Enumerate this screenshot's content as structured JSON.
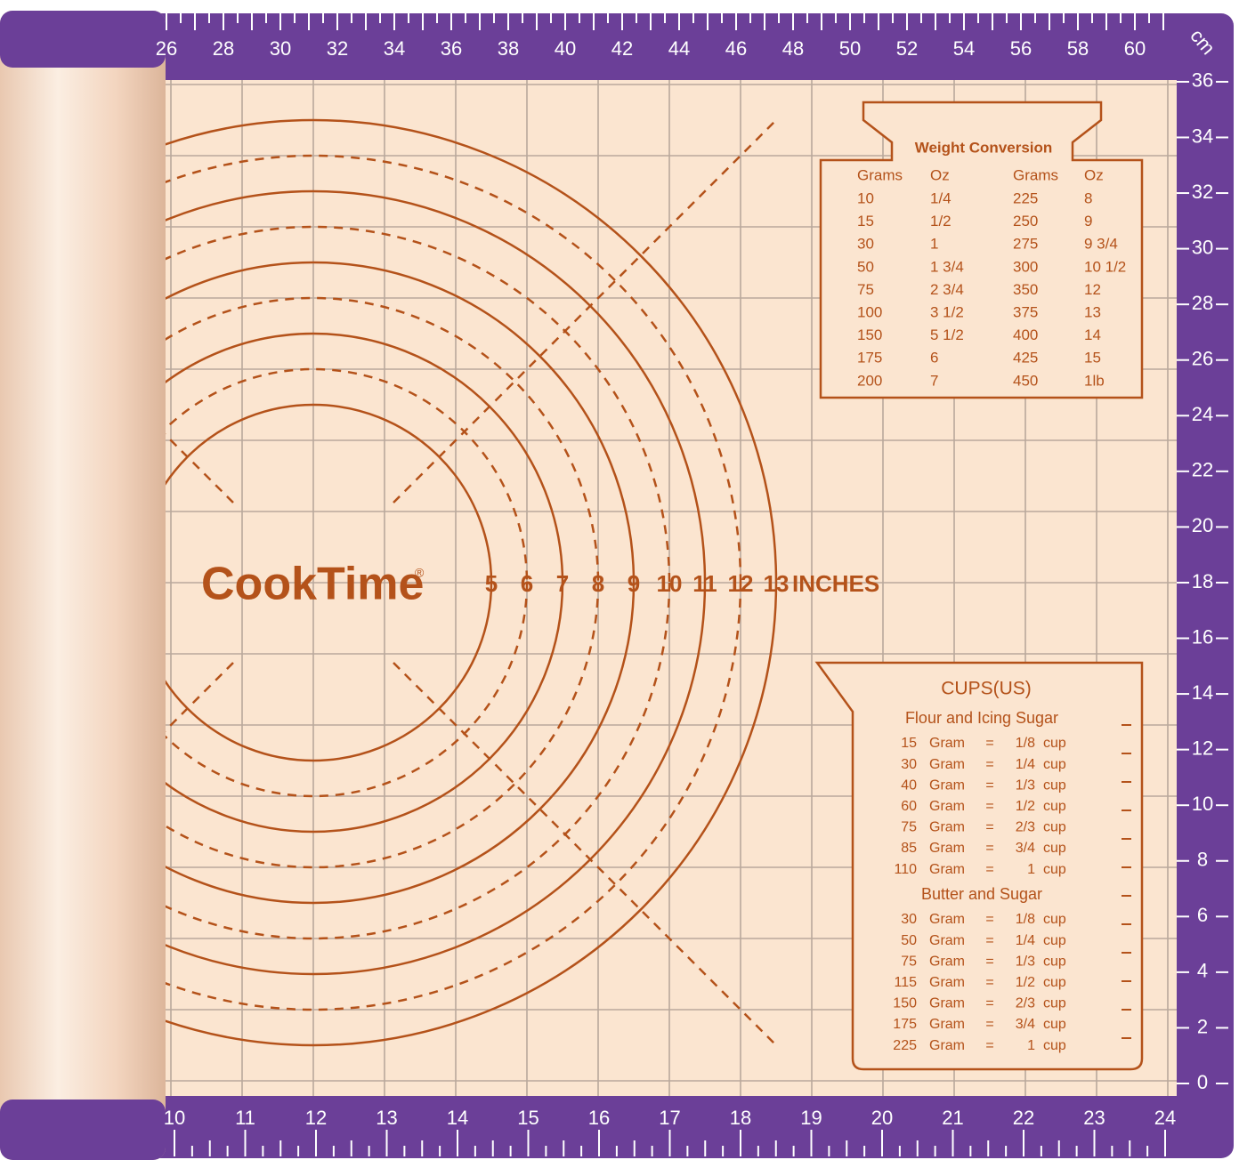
{
  "ruler_top": {
    "unit": "cm",
    "labels": [
      26,
      28,
      30,
      32,
      34,
      36,
      38,
      40,
      42,
      44,
      46,
      48,
      50,
      52,
      54,
      56,
      58,
      60
    ]
  },
  "ruler_right": {
    "labels": [
      0,
      2,
      4,
      6,
      8,
      10,
      12,
      14,
      16,
      18,
      20,
      22,
      24,
      26,
      28,
      30,
      32,
      34,
      36
    ]
  },
  "ruler_bottom": {
    "labels": [
      10,
      11,
      12,
      13,
      14,
      15,
      16,
      17,
      18,
      19,
      20,
      21,
      22,
      23,
      24
    ]
  },
  "brand": {
    "name": "CookTime",
    "mark": "®"
  },
  "circle_scale": {
    "labels": [
      5,
      6,
      7,
      8,
      9,
      10,
      11,
      12,
      13
    ],
    "unit": "INCHES"
  },
  "weight_conversion": {
    "title": "Weight Conversion",
    "headers": [
      "Grams",
      "Oz",
      "Grams",
      "Oz"
    ],
    "rows": [
      [
        "10",
        "1/4",
        "225",
        "8"
      ],
      [
        "15",
        "1/2",
        "250",
        "9"
      ],
      [
        "30",
        "1",
        "275",
        "9 3/4"
      ],
      [
        "50",
        "1 3/4",
        "300",
        "10 1/2"
      ],
      [
        "75",
        "2 3/4",
        "350",
        "12"
      ],
      [
        "100",
        "3 1/2",
        "375",
        "13"
      ],
      [
        "150",
        "5 1/2",
        "400",
        "14"
      ],
      [
        "175",
        "6",
        "425",
        "15"
      ],
      [
        "200",
        "7",
        "450",
        "1lb"
      ]
    ]
  },
  "cups": {
    "title": "CUPS(US)",
    "sections": [
      {
        "title": "Flour and Icing Sugar",
        "rows": [
          [
            "15",
            "Gram",
            "=",
            "1/8",
            "cup"
          ],
          [
            "30",
            "Gram",
            "=",
            "1/4",
            "cup"
          ],
          [
            "40",
            "Gram",
            "=",
            "1/3",
            "cup"
          ],
          [
            "60",
            "Gram",
            "=",
            "1/2",
            "cup"
          ],
          [
            "75",
            "Gram",
            "=",
            "2/3",
            "cup"
          ],
          [
            "85",
            "Gram",
            "=",
            "3/4",
            "cup"
          ],
          [
            "110",
            "Gram",
            "=",
            "1",
            "cup"
          ]
        ]
      },
      {
        "title": "Butter and Sugar",
        "rows": [
          [
            "30",
            "Gram",
            "=",
            "1/8",
            "cup"
          ],
          [
            "50",
            "Gram",
            "=",
            "1/4",
            "cup"
          ],
          [
            "75",
            "Gram",
            "=",
            "1/3",
            "cup"
          ],
          [
            "115",
            "Gram",
            "=",
            "1/2",
            "cup"
          ],
          [
            "150",
            "Gram",
            "=",
            "2/3",
            "cup"
          ],
          [
            "175",
            "Gram",
            "=",
            "3/4",
            "cup"
          ],
          [
            "225",
            "Gram",
            "=",
            "1",
            "cup"
          ]
        ]
      }
    ]
  }
}
